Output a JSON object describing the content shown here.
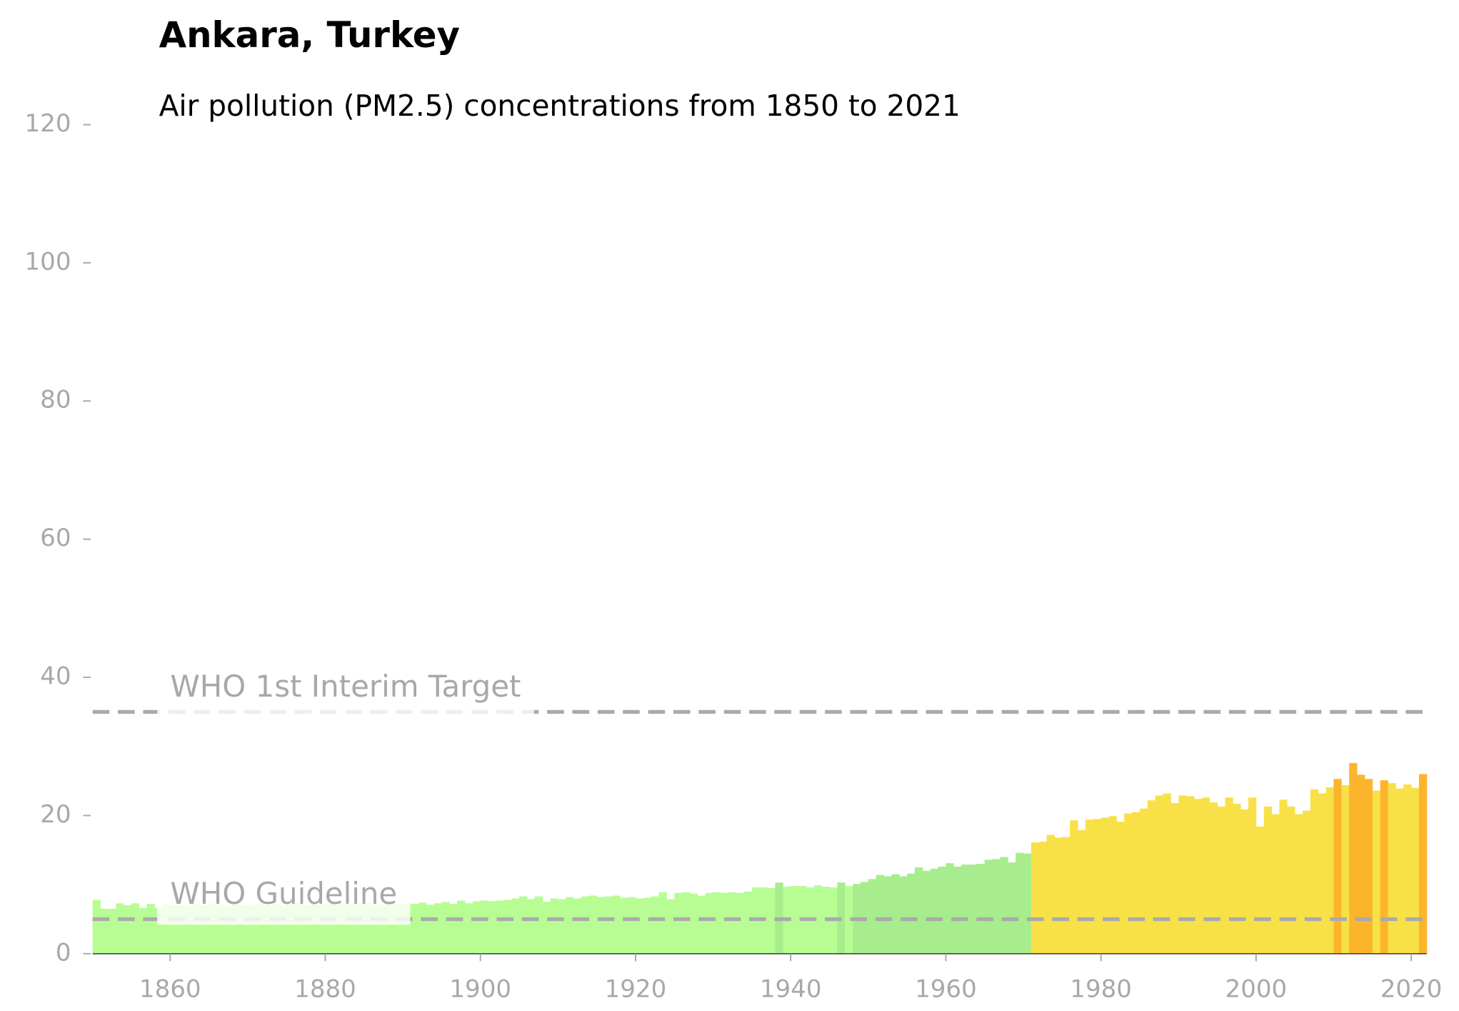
{
  "chart_data": {
    "type": "bar",
    "title": "Ankara, Turkey",
    "subtitle": "Air pollution (PM2.5) concentrations from 1850 to 2021",
    "x_start": 1850,
    "values": [
      7.8,
      6.5,
      6.5,
      7.3,
      7.0,
      7.3,
      6.6,
      7.2,
      6.6,
      7.1,
      7.0,
      7.1,
      6.9,
      7.2,
      7.0,
      7.3,
      7.1,
      6.9,
      7.2,
      7.0,
      7.1,
      7.3,
      7.0,
      7.2,
      6.9,
      7.1,
      7.3,
      7.0,
      7.2,
      7.1,
      7.2,
      7.0,
      7.3,
      7.1,
      7.2,
      7.4,
      7.0,
      7.2,
      7.3,
      7.1,
      7.3,
      7.2,
      7.4,
      7.1,
      7.3,
      7.5,
      7.2,
      7.7,
      7.3,
      7.6,
      7.7,
      7.6,
      7.7,
      7.8,
      8.0,
      8.3,
      7.9,
      8.3,
      7.5,
      8.0,
      7.9,
      8.2,
      8.0,
      8.3,
      8.4,
      8.2,
      8.3,
      8.4,
      8.1,
      8.2,
      8.0,
      8.1,
      8.3,
      8.9,
      7.9,
      8.8,
      8.9,
      8.7,
      8.4,
      8.8,
      8.9,
      8.8,
      8.9,
      8.8,
      9.0,
      9.6,
      9.6,
      9.5,
      10.3,
      9.7,
      9.8,
      9.8,
      9.6,
      9.9,
      9.7,
      9.6,
      10.3,
      9.8,
      10.1,
      10.4,
      10.8,
      11.4,
      11.2,
      11.5,
      11.2,
      11.6,
      12.5,
      12.0,
      12.3,
      12.6,
      13.1,
      12.6,
      12.9,
      12.9,
      13.0,
      13.6,
      13.7,
      14.0,
      13.2,
      14.6,
      14.5,
      16.1,
      16.2,
      17.2,
      16.8,
      16.9,
      19.3,
      17.9,
      19.4,
      19.5,
      19.7,
      19.9,
      19.1,
      20.3,
      20.5,
      21.0,
      22.2,
      22.9,
      23.2,
      21.8,
      22.9,
      22.8,
      22.4,
      22.6,
      21.9,
      21.3,
      22.6,
      21.7,
      20.9,
      22.6,
      18.4,
      21.3,
      20.2,
      22.3,
      21.3,
      20.2,
      20.7,
      23.8,
      23.2,
      24.1,
      25.3,
      24.4,
      27.6,
      25.9,
      25.3,
      23.6,
      25.1,
      24.7,
      23.9,
      24.5,
      24.0,
      26.0
    ],
    "colors": [
      "#b7fd94",
      "#b7fd94",
      "#b7fd94",
      "#b7fd94",
      "#b7fd94",
      "#b7fd94",
      "#b7fd94",
      "#b7fd94",
      "#b7fd94",
      "#b7fd94",
      "#b7fd94",
      "#b7fd94",
      "#b7fd94",
      "#b7fd94",
      "#b7fd94",
      "#b7fd94",
      "#b7fd94",
      "#b7fd94",
      "#b7fd94",
      "#b7fd94",
      "#b7fd94",
      "#b7fd94",
      "#b7fd94",
      "#b7fd94",
      "#b7fd94",
      "#b7fd94",
      "#b7fd94",
      "#b7fd94",
      "#b7fd94",
      "#b7fd94",
      "#b7fd94",
      "#b7fd94",
      "#b7fd94",
      "#b7fd94",
      "#b7fd94",
      "#b7fd94",
      "#b7fd94",
      "#b7fd94",
      "#b7fd94",
      "#b7fd94",
      "#b7fd94",
      "#b7fd94",
      "#b7fd94",
      "#b7fd94",
      "#b7fd94",
      "#b7fd94",
      "#b7fd94",
      "#b7fd94",
      "#b7fd94",
      "#b7fd94",
      "#b7fd94",
      "#b7fd94",
      "#b7fd94",
      "#b7fd94",
      "#b7fd94",
      "#b7fd94",
      "#b7fd94",
      "#b7fd94",
      "#b7fd94",
      "#b7fd94",
      "#b7fd94",
      "#b7fd94",
      "#b7fd94",
      "#b7fd94",
      "#b7fd94",
      "#b7fd94",
      "#b7fd94",
      "#b7fd94",
      "#b7fd94",
      "#b7fd94",
      "#b7fd94",
      "#b7fd94",
      "#b7fd94",
      "#b7fd94",
      "#b7fd94",
      "#b7fd94",
      "#b7fd94",
      "#b7fd94",
      "#b7fd94",
      "#b7fd94",
      "#b7fd94",
      "#b7fd94",
      "#b7fd94",
      "#b7fd94",
      "#b7fd94",
      "#b7fd94",
      "#b7fd94",
      "#b7fd94",
      "#a7ed8d",
      "#b7fd94",
      "#b7fd94",
      "#b7fd94",
      "#b7fd94",
      "#b7fd94",
      "#b7fd94",
      "#b7fd94",
      "#a7ed8d",
      "#b7fd94",
      "#a7ed8d",
      "#a7ed8d",
      "#a7ed8d",
      "#a7ed8d",
      "#a7ed8d",
      "#a7ed8d",
      "#a7ed8d",
      "#a7ed8d",
      "#a7ed8d",
      "#a7ed8d",
      "#a7ed8d",
      "#a7ed8d",
      "#a7ed8d",
      "#a7ed8d",
      "#a7ed8d",
      "#a7ed8d",
      "#a7ed8d",
      "#a7ed8d",
      "#a7ed8d",
      "#a7ed8d",
      "#a7ed8d",
      "#a7ed8d",
      "#a7ed8d",
      "#f8e047",
      "#f8e047",
      "#f8e047",
      "#f8e047",
      "#f8e047",
      "#f8e047",
      "#f8e047",
      "#f8e047",
      "#f8e047",
      "#f8e047",
      "#f8e047",
      "#f8e047",
      "#f8e047",
      "#f8e047",
      "#f8e047",
      "#f8e047",
      "#f8e047",
      "#f8e047",
      "#f8e047",
      "#f8e047",
      "#f8e047",
      "#f8e047",
      "#f8e047",
      "#f8e047",
      "#f8e047",
      "#f8e047",
      "#f8e047",
      "#f8e047",
      "#f8e047",
      "#f8e047",
      "#f8e047",
      "#f8e047",
      "#f8e047",
      "#f8e047",
      "#f8e047",
      "#f8e047",
      "#f8e047",
      "#f8e047",
      "#f8e047",
      "#fbb52d",
      "#f8e047",
      "#fbb52d",
      "#fbb52d",
      "#fbb52d",
      "#f8e047",
      "#fbb52d",
      "#f8e047",
      "#f8e047",
      "#f8e047",
      "#f8e047",
      "#fbb52d"
    ],
    "xlim": [
      1850,
      2022
    ],
    "xticks": [
      1860,
      1880,
      1900,
      1920,
      1940,
      1960,
      1980,
      2000,
      2020
    ],
    "ylim": [
      0,
      120
    ],
    "yticks": [
      0,
      20,
      40,
      60,
      80,
      100,
      120
    ],
    "reference_lines": [
      {
        "value": 35,
        "label": "WHO 1st Interim Target"
      },
      {
        "value": 5,
        "label": "WHO Guideline"
      }
    ]
  }
}
